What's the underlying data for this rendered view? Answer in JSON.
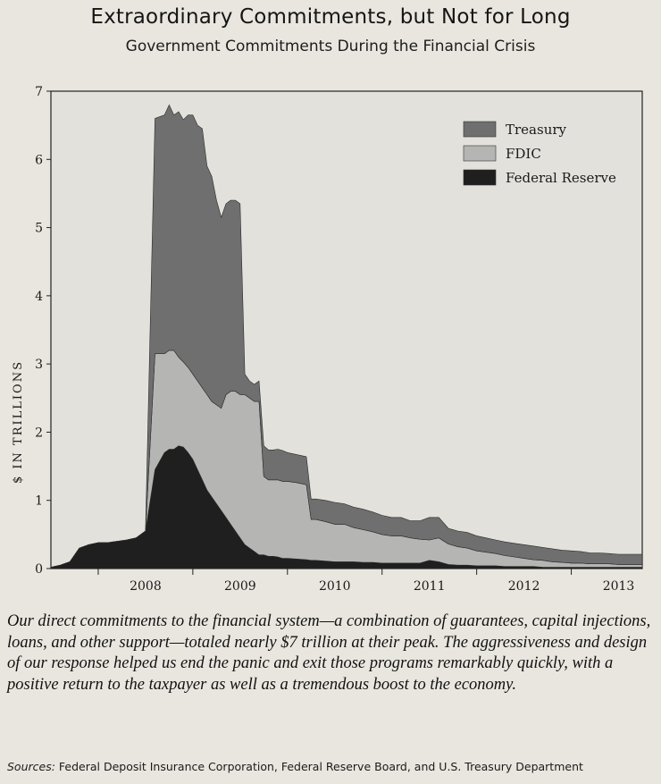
{
  "title": "Extraordinary Commitments, but Not for Long",
  "subtitle": "Government Commitments During the Financial Crisis",
  "caption": "Our direct commitments to the financial system—a combination of guarantees, capital injections, loans, and other support—totaled nearly $7 trillion at their peak. The aggressiveness and design of our response helped us end the panic and exit those programs remarkably quickly, with a positive return to the taxpayer as well as a tremendous boost to the economy.",
  "sources": {
    "label": "Sources:",
    "text": "Federal Deposit Insurance Corporation, Federal Reserve Board, and U.S. Treasury Department"
  },
  "colors": {
    "treasury": "#6f6f6f",
    "fdic": "#b5b5b3",
    "federal_reserve": "#1f1f1f",
    "plot_bg": "#e3e1dc"
  },
  "chart_data": {
    "type": "area",
    "stacked": true,
    "title": "Government Commitments During the Financial Crisis",
    "ylabel": "$ IN TRILLIONS",
    "xlabel": "",
    "ylim": [
      0,
      7
    ],
    "xlim": [
      2007.5,
      2013.75
    ],
    "yticks": [
      "0",
      "1",
      "2",
      "3",
      "4",
      "5",
      "6",
      "7"
    ],
    "xticks": [
      "2008",
      "2009",
      "2010",
      "2011",
      "2012",
      "2013"
    ],
    "legend": [
      "Treasury",
      "FDIC",
      "Federal Reserve"
    ],
    "legend_position": "top-right",
    "x": [
      2007.5,
      2007.6,
      2007.7,
      2007.8,
      2007.9,
      2008.0,
      2008.1,
      2008.2,
      2008.3,
      2008.4,
      2008.5,
      2008.6,
      2008.7,
      2008.75,
      2008.8,
      2008.85,
      2008.9,
      2008.95,
      2009.0,
      2009.05,
      2009.1,
      2009.15,
      2009.2,
      2009.25,
      2009.3,
      2009.35,
      2009.4,
      2009.45,
      2009.5,
      2009.55,
      2009.6,
      2009.65,
      2009.7,
      2009.75,
      2009.8,
      2009.85,
      2009.9,
      2009.95,
      2010.0,
      2010.1,
      2010.2,
      2010.25,
      2010.3,
      2010.4,
      2010.5,
      2010.6,
      2010.7,
      2010.8,
      2010.9,
      2011.0,
      2011.1,
      2011.2,
      2011.3,
      2011.4,
      2011.5,
      2011.6,
      2011.7,
      2011.8,
      2011.9,
      2012.0,
      2012.1,
      2012.2,
      2012.3,
      2012.4,
      2012.5,
      2012.6,
      2012.7,
      2012.8,
      2012.9,
      2013.0,
      2013.1,
      2013.2,
      2013.3,
      2013.4,
      2013.5,
      2013.6,
      2013.75
    ],
    "series": [
      {
        "name": "Federal Reserve",
        "values": [
          0.02,
          0.05,
          0.1,
          0.3,
          0.35,
          0.38,
          0.38,
          0.4,
          0.42,
          0.45,
          0.55,
          1.45,
          1.7,
          1.75,
          1.75,
          1.8,
          1.78,
          1.7,
          1.6,
          1.45,
          1.3,
          1.15,
          1.05,
          0.95,
          0.85,
          0.75,
          0.65,
          0.55,
          0.45,
          0.35,
          0.3,
          0.25,
          0.2,
          0.2,
          0.18,
          0.18,
          0.17,
          0.15,
          0.15,
          0.14,
          0.13,
          0.12,
          0.12,
          0.11,
          0.1,
          0.1,
          0.1,
          0.09,
          0.09,
          0.08,
          0.08,
          0.08,
          0.08,
          0.08,
          0.12,
          0.1,
          0.06,
          0.05,
          0.05,
          0.04,
          0.04,
          0.04,
          0.03,
          0.03,
          0.03,
          0.03,
          0.02,
          0.02,
          0.02,
          0.02,
          0.02,
          0.02,
          0.02,
          0.02,
          0.02,
          0.02,
          0.02
        ]
      },
      {
        "name": "FDIC",
        "values": [
          0.0,
          0.0,
          0.0,
          0.0,
          0.0,
          0.0,
          0.0,
          0.0,
          0.0,
          0.0,
          0.0,
          1.7,
          1.45,
          1.45,
          1.45,
          1.3,
          1.25,
          1.25,
          1.25,
          1.3,
          1.35,
          1.4,
          1.4,
          1.45,
          1.5,
          1.8,
          1.95,
          2.05,
          2.1,
          2.2,
          2.2,
          2.2,
          2.25,
          1.15,
          1.12,
          1.12,
          1.13,
          1.13,
          1.13,
          1.12,
          1.1,
          0.6,
          0.6,
          0.58,
          0.55,
          0.55,
          0.5,
          0.48,
          0.45,
          0.42,
          0.4,
          0.4,
          0.37,
          0.35,
          0.3,
          0.35,
          0.3,
          0.27,
          0.25,
          0.22,
          0.2,
          0.18,
          0.16,
          0.14,
          0.12,
          0.1,
          0.1,
          0.08,
          0.07,
          0.06,
          0.06,
          0.05,
          0.05,
          0.05,
          0.04,
          0.04,
          0.04
        ]
      },
      {
        "name": "Treasury",
        "values": [
          0.0,
          0.0,
          0.0,
          0.0,
          0.0,
          0.0,
          0.0,
          0.0,
          0.0,
          0.0,
          0.0,
          3.45,
          3.5,
          3.6,
          3.45,
          3.6,
          3.55,
          3.7,
          3.8,
          3.75,
          3.8,
          3.35,
          3.3,
          3.0,
          2.8,
          2.8,
          2.8,
          2.8,
          2.8,
          0.3,
          0.25,
          0.25,
          0.3,
          0.45,
          0.44,
          0.44,
          0.45,
          0.45,
          0.42,
          0.41,
          0.41,
          0.3,
          0.3,
          0.31,
          0.32,
          0.3,
          0.3,
          0.3,
          0.29,
          0.28,
          0.27,
          0.27,
          0.25,
          0.27,
          0.33,
          0.3,
          0.23,
          0.23,
          0.23,
          0.22,
          0.21,
          0.2,
          0.2,
          0.2,
          0.2,
          0.2,
          0.19,
          0.19,
          0.18,
          0.18,
          0.17,
          0.16,
          0.16,
          0.15,
          0.15,
          0.15,
          0.15
        ]
      }
    ]
  }
}
